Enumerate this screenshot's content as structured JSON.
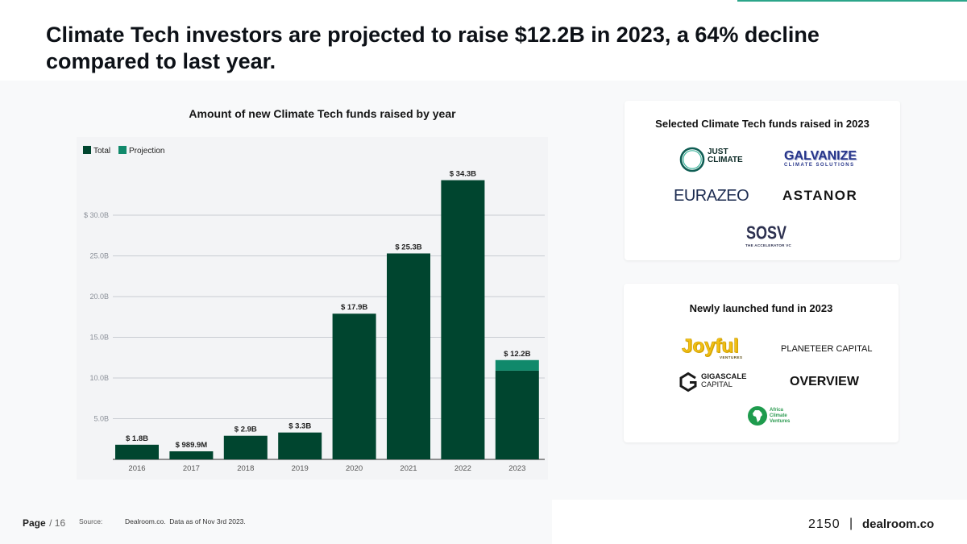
{
  "header": {
    "title": "Climate Tech investors are projected to raise $12.2B in 2023, a 64% decline compared to last year.",
    "accent_color": "#2ba58a"
  },
  "chart_data": {
    "type": "bar",
    "stacked": true,
    "title": "Amount of new Climate Tech funds raised by year",
    "categories": [
      "2016",
      "2017",
      "2018",
      "2019",
      "2020",
      "2021",
      "2022",
      "2023"
    ],
    "series": [
      {
        "name": "Total",
        "color": "#00452f",
        "values": [
          1.8,
          0.9899,
          2.9,
          3.3,
          17.9,
          25.3,
          34.3,
          10.9
        ]
      },
      {
        "name": "Projection",
        "color": "#10896b",
        "values": [
          0,
          0,
          0,
          0,
          0,
          0,
          0,
          1.3
        ]
      }
    ],
    "data_labels": [
      "$ 1.8B",
      "$ 989.9M",
      "$ 2.9B",
      "$ 3.3B",
      "$ 17.9B",
      "$ 25.3B",
      "$ 34.3B",
      "$ 12.2B"
    ],
    "y_ticks": [
      {
        "value": 5,
        "label": "5.0B"
      },
      {
        "value": 10,
        "label": "10.0B"
      },
      {
        "value": 15,
        "label": "15.0B"
      },
      {
        "value": 20,
        "label": "20.0B"
      },
      {
        "value": 25,
        "label": "25.0B"
      },
      {
        "value": 30,
        "label": "$ 30.0B"
      }
    ],
    "ylim": [
      0,
      36
    ],
    "grid": true,
    "legend_position": "top-left"
  },
  "selected_funds": {
    "title": "Selected Climate Tech funds raised in 2023",
    "just_climate": {
      "line1": "JUST",
      "line2": "CLIMATE"
    },
    "galvanize": {
      "name": "GALVANIZE",
      "tagline": "CLIMATE SOLUTIONS"
    },
    "eurazeo": "EURAZEO",
    "astanor": "ASTANOR",
    "sosv": {
      "name": "SOSV",
      "tagline": "THE ACCELERATOR VC"
    }
  },
  "new_funds": {
    "title": "Newly launched fund in 2023",
    "joyful": {
      "name": "Joyful",
      "tagline": "VENTURES"
    },
    "planeteer": "PLANETEER CAPITAL",
    "gigascale": {
      "line1": "GIGASCALE",
      "line2": "CAPITAL"
    },
    "overview": "OVERVIEW",
    "africa_climate": {
      "line1": "Africa",
      "line2": "Climate",
      "line3": "Ventures"
    }
  },
  "footer": {
    "page_label": "Page",
    "page_number": "/ 16",
    "source_label": "Source:",
    "source_text": "Dealroom.co.  Data as of Nov 3rd 2023.",
    "brand_left": "2150",
    "brand_separator": "|",
    "brand_right": "dealroom.co"
  }
}
